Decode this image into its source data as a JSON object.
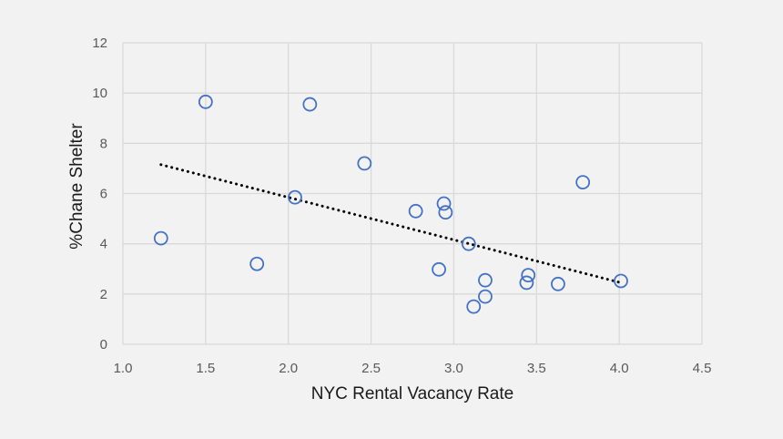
{
  "chart_data": {
    "type": "scatter",
    "title": "",
    "xlabel": "NYC Rental Vacancy Rate",
    "ylabel": "%Chane Shelter",
    "xlim": [
      1.0,
      4.5
    ],
    "ylim": [
      0,
      12
    ],
    "xticks": [
      "1.0",
      "1.5",
      "2.0",
      "2.5",
      "3.0",
      "3.5",
      "4.0",
      "4.5"
    ],
    "yticks": [
      "0",
      "2",
      "4",
      "6",
      "8",
      "10",
      "12"
    ],
    "grid": true,
    "legend": "none",
    "series": [
      {
        "marker": "hollow-circle",
        "color": "#4472c4",
        "points": [
          {
            "x": 1.23,
            "y": 4.22
          },
          {
            "x": 1.5,
            "y": 9.65
          },
          {
            "x": 1.81,
            "y": 3.2
          },
          {
            "x": 2.04,
            "y": 5.85
          },
          {
            "x": 2.13,
            "y": 9.55
          },
          {
            "x": 2.46,
            "y": 7.2
          },
          {
            "x": 2.77,
            "y": 5.3
          },
          {
            "x": 2.91,
            "y": 2.98
          },
          {
            "x": 2.94,
            "y": 5.6
          },
          {
            "x": 2.95,
            "y": 5.25
          },
          {
            "x": 3.09,
            "y": 4.0
          },
          {
            "x": 3.12,
            "y": 1.5
          },
          {
            "x": 3.19,
            "y": 1.9
          },
          {
            "x": 3.19,
            "y": 2.55
          },
          {
            "x": 3.44,
            "y": 2.45
          },
          {
            "x": 3.45,
            "y": 2.75
          },
          {
            "x": 3.63,
            "y": 2.4
          },
          {
            "x": 3.78,
            "y": 6.45
          },
          {
            "x": 4.01,
            "y": 2.52
          }
        ]
      }
    ],
    "trendline": {
      "type": "linear",
      "style": "dotted",
      "color": "#000000",
      "x": [
        1.23,
        4.01
      ],
      "y": [
        7.15,
        2.45
      ]
    },
    "colors": {
      "background": "#f2f2f2",
      "grid": "#d9d9d9",
      "marker": "#4472c4"
    }
  }
}
